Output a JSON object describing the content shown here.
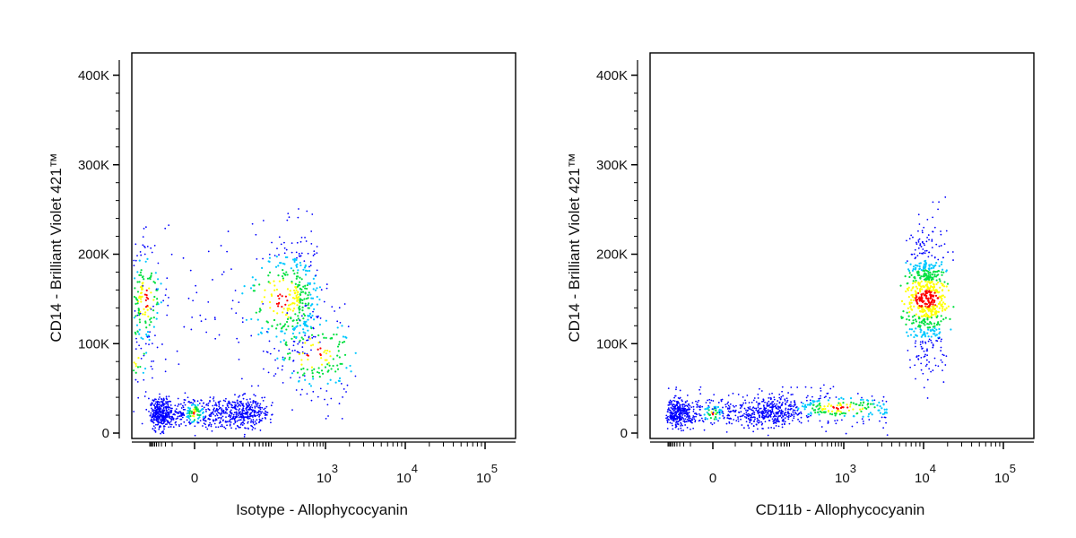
{
  "chart_data": [
    {
      "type": "scatter",
      "xlabel": "Isotype - Allophycocyanin",
      "ylabel": "CD14 - Brilliant Violet 421™",
      "x_scale": "biexponential",
      "x_ticks": [
        {
          "value": 0,
          "label": "0"
        },
        {
          "value": 1000,
          "base": "10",
          "exp": "3"
        },
        {
          "value": 10000,
          "base": "10",
          "exp": "4"
        },
        {
          "value": 100000,
          "base": "10",
          "exp": "5"
        }
      ],
      "y_ticks": [
        {
          "value": 0,
          "label": "0"
        },
        {
          "value": 100000,
          "label": "100K"
        },
        {
          "value": 200000,
          "label": "200K"
        },
        {
          "value": 300000,
          "label": "300K"
        },
        {
          "value": 400000,
          "label": "400K"
        }
      ],
      "ylim": [
        0,
        400000
      ],
      "density_colors": [
        "#0000ff",
        "#00c8ff",
        "#00e040",
        "#ffff00",
        "#ff0000"
      ],
      "populations": [
        {
          "x_center": 0,
          "y_center": 22000,
          "x_spread": 35,
          "y_spread": 9000,
          "fraction": 0.55
        },
        {
          "x_center": 150,
          "y_center": 150000,
          "x_spread": 280,
          "y_spread": 38000,
          "fraction": 0.33
        },
        {
          "x_center": 600,
          "y_center": 90000,
          "x_spread": 700,
          "y_spread": 30000,
          "fraction": 0.12
        }
      ]
    },
    {
      "type": "scatter",
      "xlabel": "CD11b - Allophycocyanin",
      "ylabel": "CD14 - Brilliant Violet 421™",
      "x_scale": "biexponential",
      "x_ticks": [
        {
          "value": 0,
          "label": "0"
        },
        {
          "value": 1000,
          "base": "10",
          "exp": "3"
        },
        {
          "value": 10000,
          "base": "10",
          "exp": "4"
        },
        {
          "value": 100000,
          "base": "10",
          "exp": "5"
        }
      ],
      "y_ticks": [
        {
          "value": 0,
          "label": "0"
        },
        {
          "value": 100000,
          "label": "100K"
        },
        {
          "value": 200000,
          "label": "200K"
        },
        {
          "value": 300000,
          "label": "300K"
        },
        {
          "value": 400000,
          "label": "400K"
        }
      ],
      "ylim": [
        0,
        400000
      ],
      "density_colors": [
        "#0000ff",
        "#00c8ff",
        "#00e040",
        "#ffff00",
        "#ff0000"
      ],
      "populations": [
        {
          "x_center": 0,
          "y_center": 22000,
          "x_spread": 45,
          "y_spread": 8000,
          "fraction": 0.4
        },
        {
          "x_center": 800,
          "y_center": 28000,
          "x_spread": 2500,
          "y_spread": 9000,
          "fraction": 0.22
        },
        {
          "x_center": 11000,
          "y_center": 150000,
          "x_spread": 4000,
          "y_spread": 35000,
          "fraction": 0.38
        }
      ]
    }
  ]
}
